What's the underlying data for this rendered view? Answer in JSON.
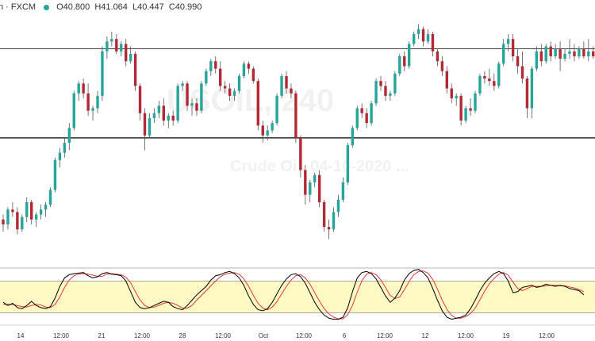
{
  "header": {
    "symbol": "h · FXCM",
    "ohlc": {
      "open": "O40.800",
      "high": "H41.064",
      "low": "L40.447",
      "close": "C40.990"
    }
  },
  "watermark": {
    "symbol": "USOIL, 240",
    "description": "Crude Oil, 04-10-2020 ..."
  },
  "x_labels": [
    "14",
    "12:00",
    "21",
    "12:00",
    "28",
    "12:00",
    "Oct",
    "12:00",
    "6",
    "12:00",
    "12",
    "12:00",
    "19",
    "12:00"
  ],
  "colors": {
    "up": "#26a69a",
    "down": "#b22833",
    "oscillator_fast": "#000000",
    "oscillator_slow": "#e53935",
    "band": "#fff9c4"
  },
  "chart_data": {
    "type": "candlestick",
    "price_range": [
      34.5,
      44.7
    ],
    "horizontal_levels": [
      43.3,
      39.7
    ],
    "candles": [
      [
        36.4,
        36.6,
        35.9,
        36.2
      ],
      [
        36.2,
        36.9,
        36.0,
        36.8
      ],
      [
        36.8,
        37.1,
        36.5,
        36.7
      ],
      [
        36.7,
        36.9,
        35.8,
        36.0
      ],
      [
        36.0,
        36.6,
        35.9,
        36.5
      ],
      [
        36.5,
        37.3,
        36.3,
        37.1
      ],
      [
        37.1,
        37.2,
        36.2,
        36.4
      ],
      [
        36.4,
        36.7,
        36.1,
        36.6
      ],
      [
        36.6,
        37.0,
        36.4,
        36.8
      ],
      [
        36.8,
        37.1,
        36.5,
        37.0
      ],
      [
        37.0,
        37.7,
        36.9,
        37.6
      ],
      [
        37.6,
        38.9,
        37.5,
        38.8
      ],
      [
        38.8,
        39.3,
        38.5,
        39.1
      ],
      [
        39.1,
        39.7,
        38.9,
        39.5
      ],
      [
        39.5,
        40.3,
        39.2,
        40.1
      ],
      [
        40.1,
        41.6,
        40.0,
        41.5
      ],
      [
        41.5,
        42.0,
        41.2,
        41.9
      ],
      [
        41.9,
        42.1,
        41.3,
        41.5
      ],
      [
        41.5,
        41.9,
        40.6,
        40.8
      ],
      [
        40.8,
        41.0,
        40.4,
        40.9
      ],
      [
        40.9,
        41.6,
        40.7,
        41.4
      ],
      [
        41.4,
        43.4,
        41.2,
        43.2
      ],
      [
        43.2,
        43.8,
        42.9,
        43.6
      ],
      [
        43.6,
        44.0,
        43.4,
        43.7
      ],
      [
        43.7,
        43.9,
        43.1,
        43.2
      ],
      [
        43.2,
        43.6,
        43.0,
        43.5
      ],
      [
        43.5,
        43.7,
        42.6,
        42.8
      ],
      [
        42.8,
        43.4,
        42.7,
        43.1
      ],
      [
        43.1,
        43.2,
        41.6,
        41.8
      ],
      [
        41.8,
        41.9,
        40.4,
        40.7
      ],
      [
        40.7,
        40.9,
        39.2,
        39.8
      ],
      [
        39.8,
        40.7,
        39.7,
        40.5
      ],
      [
        40.5,
        40.9,
        40.3,
        40.7
      ],
      [
        40.7,
        41.2,
        40.5,
        41.0
      ],
      [
        41.0,
        41.3,
        40.2,
        40.4
      ],
      [
        40.4,
        40.7,
        40.1,
        40.6
      ],
      [
        40.6,
        40.8,
        40.2,
        40.4
      ],
      [
        40.4,
        41.9,
        40.3,
        41.8
      ],
      [
        41.8,
        42.0,
        41.6,
        41.9
      ],
      [
        41.9,
        42.0,
        40.8,
        41.0
      ],
      [
        41.0,
        41.3,
        40.6,
        41.1
      ],
      [
        41.1,
        41.3,
        40.6,
        40.8
      ],
      [
        40.8,
        42.0,
        40.7,
        41.9
      ],
      [
        41.9,
        42.5,
        41.8,
        42.4
      ],
      [
        42.4,
        42.9,
        42.2,
        42.8
      ],
      [
        42.8,
        43.0,
        42.3,
        42.5
      ],
      [
        42.5,
        42.8,
        41.6,
        41.8
      ],
      [
        41.8,
        42.0,
        41.5,
        41.7
      ],
      [
        41.7,
        41.9,
        41.2,
        41.4
      ],
      [
        41.4,
        41.7,
        41.2,
        41.6
      ],
      [
        41.6,
        42.3,
        41.5,
        42.2
      ],
      [
        42.2,
        42.8,
        42.1,
        42.7
      ],
      [
        42.7,
        42.8,
        42.3,
        42.5
      ],
      [
        42.5,
        42.6,
        41.9,
        42.0
      ],
      [
        42.0,
        42.1,
        40.0,
        40.2
      ],
      [
        40.2,
        40.4,
        39.5,
        39.8
      ],
      [
        39.8,
        40.2,
        39.6,
        40.0
      ],
      [
        40.0,
        40.4,
        39.9,
        40.3
      ],
      [
        40.3,
        41.5,
        40.2,
        41.4
      ],
      [
        41.4,
        42.3,
        41.3,
        42.2
      ],
      [
        42.2,
        42.4,
        41.5,
        41.7
      ],
      [
        41.7,
        41.9,
        41.3,
        41.5
      ],
      [
        41.5,
        41.6,
        39.5,
        39.7
      ],
      [
        39.7,
        39.8,
        38.1,
        38.4
      ],
      [
        38.4,
        38.6,
        37.0,
        37.4
      ],
      [
        37.4,
        38.0,
        37.1,
        37.9
      ],
      [
        37.9,
        38.3,
        37.7,
        38.2
      ],
      [
        38.2,
        38.4,
        36.9,
        37.1
      ],
      [
        37.1,
        37.2,
        35.9,
        36.1
      ],
      [
        36.1,
        36.4,
        35.6,
        36.0
      ],
      [
        36.0,
        36.9,
        35.9,
        36.7
      ],
      [
        36.7,
        37.4,
        36.5,
        37.2
      ],
      [
        37.2,
        38.1,
        37.1,
        37.9
      ],
      [
        37.9,
        39.5,
        37.8,
        39.4
      ],
      [
        39.4,
        40.2,
        39.3,
        40.1
      ],
      [
        40.1,
        41.0,
        40.0,
        40.9
      ],
      [
        40.9,
        41.1,
        40.5,
        40.7
      ],
      [
        40.7,
        40.9,
        40.1,
        40.3
      ],
      [
        40.3,
        41.2,
        40.2,
        41.1
      ],
      [
        41.1,
        42.1,
        41.0,
        42.0
      ],
      [
        42.0,
        42.2,
        41.6,
        41.8
      ],
      [
        41.8,
        42.0,
        41.2,
        41.4
      ],
      [
        41.4,
        41.6,
        41.2,
        41.5
      ],
      [
        41.5,
        42.4,
        41.4,
        42.3
      ],
      [
        42.3,
        43.1,
        42.2,
        43.0
      ],
      [
        43.0,
        43.2,
        42.4,
        42.6
      ],
      [
        42.6,
        43.6,
        42.5,
        43.5
      ],
      [
        43.5,
        44.0,
        43.4,
        43.9
      ],
      [
        43.9,
        44.3,
        43.7,
        44.1
      ],
      [
        44.1,
        44.2,
        43.4,
        43.6
      ],
      [
        43.6,
        44.1,
        43.5,
        43.9
      ],
      [
        43.9,
        44.0,
        43.0,
        43.2
      ],
      [
        43.2,
        43.3,
        42.6,
        42.8
      ],
      [
        42.8,
        43.0,
        42.2,
        42.4
      ],
      [
        42.4,
        42.6,
        41.5,
        41.7
      ],
      [
        41.7,
        41.9,
        41.1,
        41.3
      ],
      [
        41.3,
        41.5,
        41.0,
        41.4
      ],
      [
        41.4,
        41.5,
        40.2,
        40.4
      ],
      [
        40.4,
        41.0,
        40.3,
        40.9
      ],
      [
        40.9,
        41.3,
        40.6,
        40.8
      ],
      [
        40.8,
        41.6,
        40.7,
        41.5
      ],
      [
        41.5,
        42.3,
        41.4,
        42.2
      ],
      [
        42.2,
        42.4,
        41.9,
        42.1
      ],
      [
        42.1,
        42.5,
        41.8,
        42.0
      ],
      [
        42.0,
        42.3,
        41.6,
        41.8
      ],
      [
        41.8,
        42.8,
        41.7,
        42.7
      ],
      [
        42.7,
        43.7,
        42.6,
        43.5
      ],
      [
        43.5,
        43.9,
        43.2,
        43.7
      ],
      [
        43.7,
        43.9,
        42.8,
        43.0
      ],
      [
        43.0,
        43.3,
        42.3,
        42.6
      ],
      [
        42.6,
        43.2,
        41.9,
        42.1
      ],
      [
        42.1,
        42.2,
        40.5,
        40.9
      ],
      [
        40.9,
        42.6,
        40.5,
        42.5
      ],
      [
        42.5,
        43.4,
        42.4,
        43.2
      ],
      [
        43.2,
        43.5,
        42.6,
        42.8
      ],
      [
        42.8,
        43.5,
        42.7,
        43.4
      ],
      [
        43.4,
        43.6,
        42.8,
        43.0
      ],
      [
        43.0,
        43.5,
        42.9,
        43.3
      ],
      [
        43.3,
        43.6,
        42.4,
        42.9
      ],
      [
        42.9,
        43.3,
        42.8,
        43.1
      ],
      [
        43.1,
        43.7,
        42.9,
        43.2
      ],
      [
        43.2,
        43.5,
        42.8,
        43.0
      ],
      [
        43.0,
        43.4,
        42.9,
        43.3
      ],
      [
        43.3,
        43.6,
        42.9,
        43.0
      ],
      [
        43.0,
        43.7,
        42.8,
        43.2
      ],
      [
        43.2,
        43.4,
        42.9,
        43.0
      ],
      [
        43.0,
        43.3,
        42.6,
        43.1
      ],
      [
        43.1,
        43.5,
        43.0,
        43.4
      ]
    ],
    "oscillator": {
      "range": [
        0,
        100
      ],
      "band": [
        20,
        80
      ],
      "k": [
        40,
        34,
        38,
        30,
        28,
        34,
        42,
        34,
        30,
        28,
        32,
        48,
        70,
        86,
        92,
        94,
        95,
        96,
        90,
        86,
        88,
        94,
        96,
        93,
        92,
        90,
        80,
        60,
        40,
        30,
        28,
        30,
        34,
        38,
        42,
        40,
        32,
        28,
        26,
        34,
        44,
        54,
        62,
        70,
        82,
        90,
        92,
        96,
        98,
        94,
        86,
        72,
        52,
        36,
        26,
        24,
        28,
        40,
        56,
        72,
        84,
        92,
        94,
        88,
        76,
        58,
        40,
        26,
        16,
        10,
        8,
        8,
        12,
        30,
        60,
        86,
        96,
        98,
        94,
        84,
        68,
        52,
        40,
        48,
        62,
        82,
        94,
        100,
        102,
        96,
        86,
        66,
        44,
        24,
        12,
        8,
        10,
        12,
        16,
        28,
        44,
        62,
        76,
        86,
        94,
        98,
        94,
        80,
        58,
        60,
        68,
        70,
        72,
        68,
        70,
        74,
        72,
        70,
        72,
        70,
        66,
        64,
        62,
        54
      ],
      "d": [
        36,
        36,
        36,
        34,
        32,
        31,
        34,
        36,
        35,
        31,
        30,
        36,
        50,
        68,
        82,
        90,
        93,
        94,
        93,
        91,
        89,
        89,
        93,
        94,
        93,
        92,
        87,
        77,
        60,
        44,
        34,
        30,
        31,
        34,
        38,
        40,
        38,
        34,
        29,
        29,
        34,
        44,
        53,
        62,
        71,
        80,
        88,
        93,
        95,
        96,
        93,
        84,
        70,
        53,
        38,
        29,
        26,
        31,
        41,
        56,
        70,
        82,
        90,
        92,
        86,
        74,
        58,
        42,
        28,
        18,
        12,
        9,
        9,
        17,
        34,
        59,
        81,
        93,
        96,
        92,
        82,
        68,
        53,
        47,
        50,
        64,
        79,
        92,
        98,
        99,
        95,
        83,
        65,
        44,
        27,
        15,
        10,
        10,
        13,
        19,
        29,
        45,
        61,
        75,
        85,
        93,
        96,
        91,
        78,
        66,
        62,
        66,
        70,
        70,
        70,
        71,
        72,
        72,
        71,
        71,
        69,
        67,
        64,
        60
      ]
    }
  }
}
